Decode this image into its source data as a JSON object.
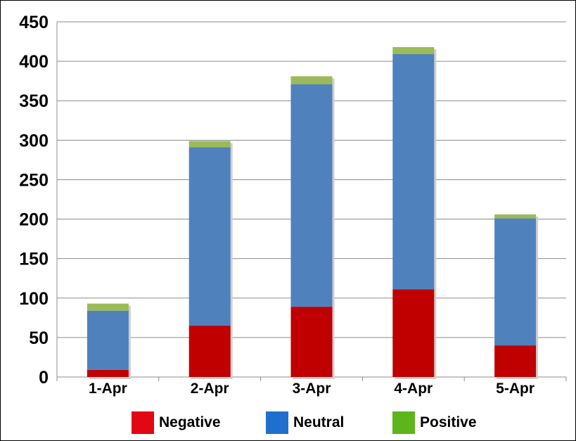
{
  "chart_data": {
    "type": "bar",
    "stacked": true,
    "categories": [
      "1-Apr",
      "2-Apr",
      "3-Apr",
      "4-Apr",
      "5-Apr"
    ],
    "series": [
      {
        "name": "Negative",
        "values": [
          9,
          65,
          89,
          111,
          40
        ],
        "color": "#c00000",
        "legend_color": "#e30613"
      },
      {
        "name": "Neutral",
        "values": [
          75,
          226,
          282,
          298,
          161
        ],
        "color": "#4f81bd",
        "legend_color": "#1f6fcf"
      },
      {
        "name": "Positive",
        "values": [
          9,
          8,
          10,
          9,
          5
        ],
        "color": "#9bbb59",
        "legend_color": "#5cb61a"
      }
    ],
    "yticks": [
      "0",
      "50",
      "100",
      "150",
      "200",
      "250",
      "300",
      "350",
      "400",
      "450"
    ],
    "ylim": [
      0,
      450
    ],
    "grid": true,
    "legend_position": "bottom"
  }
}
